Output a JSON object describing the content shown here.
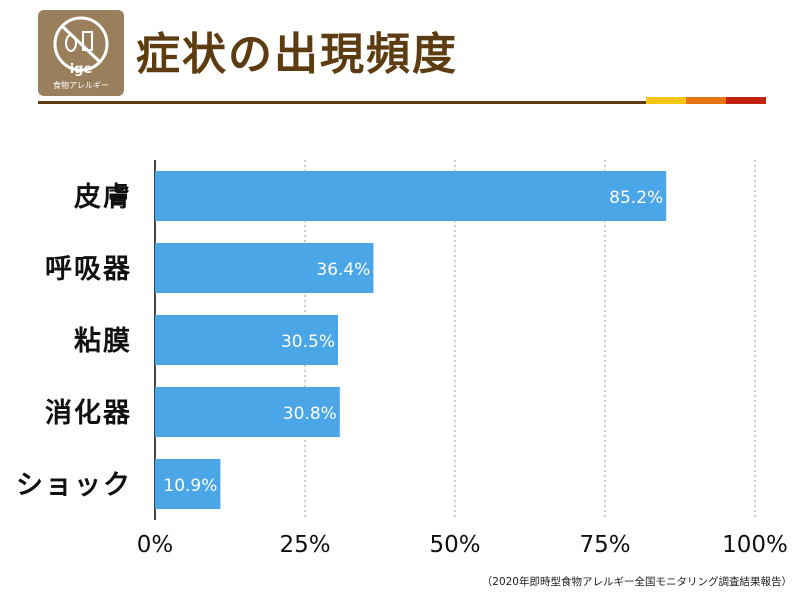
{
  "header": {
    "logo_text": "食物アレルギー",
    "logo_mark_text": "ige",
    "title": "症状の出現頻度",
    "rule_color": "#5c3c10",
    "accent_colors": [
      "#f5c518",
      "#e87514",
      "#c0230e"
    ]
  },
  "chart_data": {
    "type": "bar",
    "orientation": "horizontal",
    "categories": [
      "皮膚",
      "呼吸器",
      "粘膜",
      "消化器",
      "ショック"
    ],
    "values": [
      85.2,
      36.4,
      30.5,
      30.8,
      10.9
    ],
    "data_labels": [
      "85.2%",
      "36.4%",
      "30.5%",
      "30.8%",
      "10.9%"
    ],
    "x_ticks": [
      "0%",
      "25%",
      "50%",
      "75%",
      "100%"
    ],
    "xlim": [
      0,
      100
    ],
    "grid": "vertical dashed",
    "bar_color": "#4aa6e6",
    "title": "",
    "xlabel": "",
    "ylabel": ""
  },
  "footer": {
    "source": "（2020年即時型食物アレルギー全国モニタリング調査結果報告）"
  }
}
